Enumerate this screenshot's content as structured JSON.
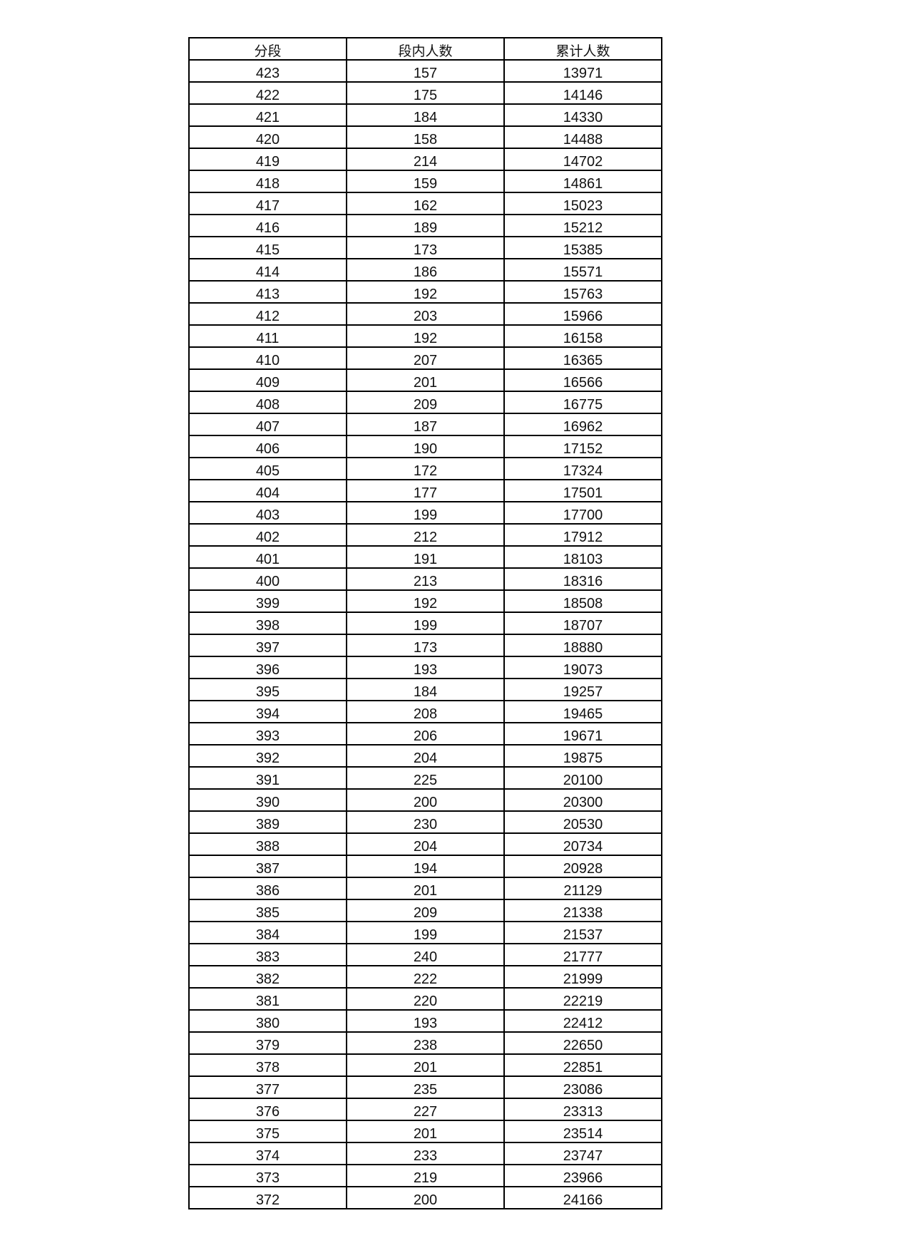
{
  "table": {
    "headers": [
      "分段",
      "段内人数",
      "累计人数"
    ],
    "rows": [
      [
        "423",
        "157",
        "13971"
      ],
      [
        "422",
        "175",
        "14146"
      ],
      [
        "421",
        "184",
        "14330"
      ],
      [
        "420",
        "158",
        "14488"
      ],
      [
        "419",
        "214",
        "14702"
      ],
      [
        "418",
        "159",
        "14861"
      ],
      [
        "417",
        "162",
        "15023"
      ],
      [
        "416",
        "189",
        "15212"
      ],
      [
        "415",
        "173",
        "15385"
      ],
      [
        "414",
        "186",
        "15571"
      ],
      [
        "413",
        "192",
        "15763"
      ],
      [
        "412",
        "203",
        "15966"
      ],
      [
        "411",
        "192",
        "16158"
      ],
      [
        "410",
        "207",
        "16365"
      ],
      [
        "409",
        "201",
        "16566"
      ],
      [
        "408",
        "209",
        "16775"
      ],
      [
        "407",
        "187",
        "16962"
      ],
      [
        "406",
        "190",
        "17152"
      ],
      [
        "405",
        "172",
        "17324"
      ],
      [
        "404",
        "177",
        "17501"
      ],
      [
        "403",
        "199",
        "17700"
      ],
      [
        "402",
        "212",
        "17912"
      ],
      [
        "401",
        "191",
        "18103"
      ],
      [
        "400",
        "213",
        "18316"
      ],
      [
        "399",
        "192",
        "18508"
      ],
      [
        "398",
        "199",
        "18707"
      ],
      [
        "397",
        "173",
        "18880"
      ],
      [
        "396",
        "193",
        "19073"
      ],
      [
        "395",
        "184",
        "19257"
      ],
      [
        "394",
        "208",
        "19465"
      ],
      [
        "393",
        "206",
        "19671"
      ],
      [
        "392",
        "204",
        "19875"
      ],
      [
        "391",
        "225",
        "20100"
      ],
      [
        "390",
        "200",
        "20300"
      ],
      [
        "389",
        "230",
        "20530"
      ],
      [
        "388",
        "204",
        "20734"
      ],
      [
        "387",
        "194",
        "20928"
      ],
      [
        "386",
        "201",
        "21129"
      ],
      [
        "385",
        "209",
        "21338"
      ],
      [
        "384",
        "199",
        "21537"
      ],
      [
        "383",
        "240",
        "21777"
      ],
      [
        "382",
        "222",
        "21999"
      ],
      [
        "381",
        "220",
        "22219"
      ],
      [
        "380",
        "193",
        "22412"
      ],
      [
        "379",
        "238",
        "22650"
      ],
      [
        "378",
        "201",
        "22851"
      ],
      [
        "377",
        "235",
        "23086"
      ],
      [
        "376",
        "227",
        "23313"
      ],
      [
        "375",
        "201",
        "23514"
      ],
      [
        "374",
        "233",
        "23747"
      ],
      [
        "373",
        "219",
        "23966"
      ],
      [
        "372",
        "200",
        "24166"
      ]
    ]
  }
}
